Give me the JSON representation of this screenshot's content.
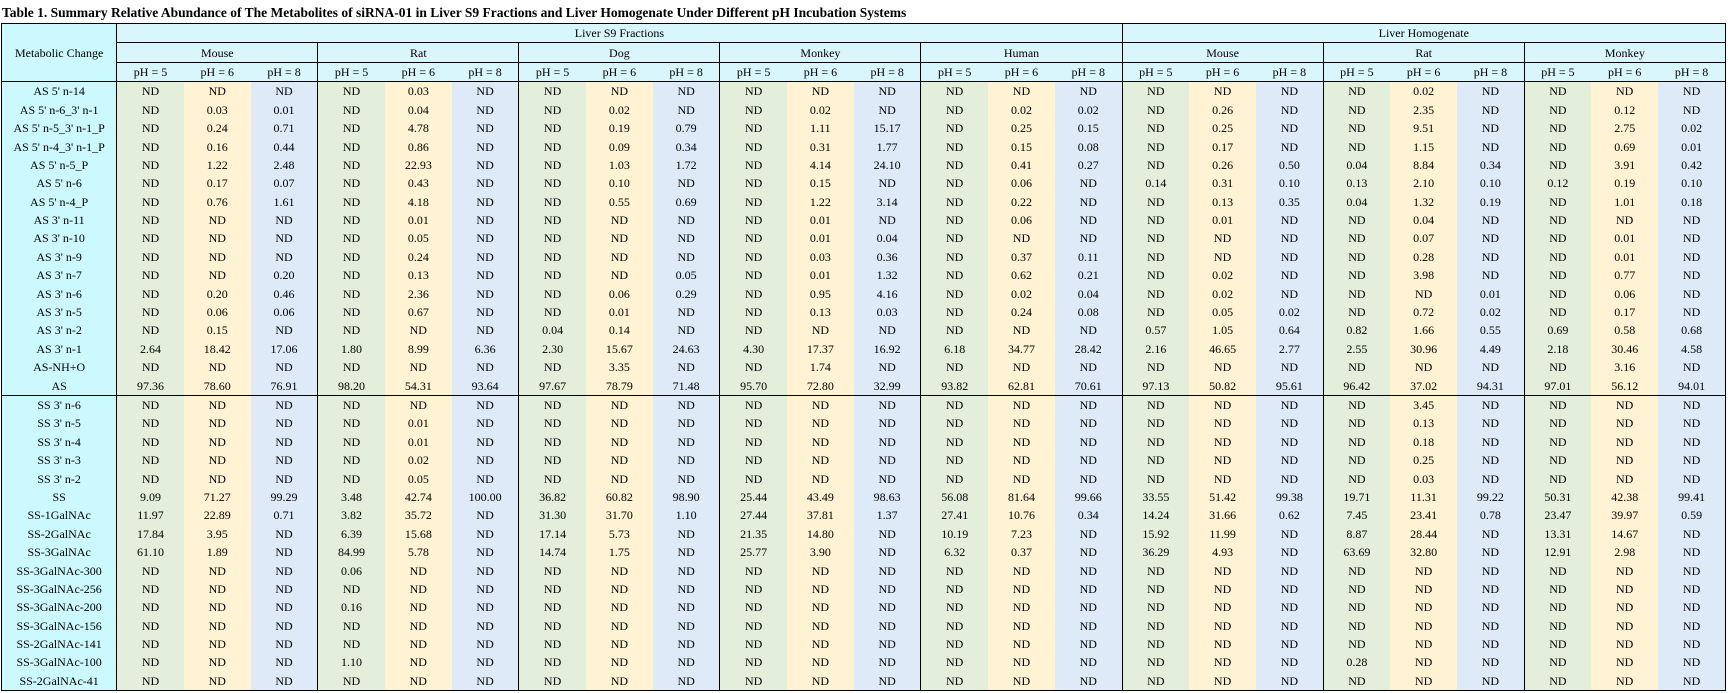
{
  "caption": "Table 1. Summary Relative Abundance of The Metabolites of siRNA-01 in Liver S9 Fractions and Liver Homogenate Under Different pH Incubation Systems",
  "table": {
    "corner": "Metabolic Change",
    "groups": [
      {
        "label": "Liver S9 Fractions",
        "span": 15
      },
      {
        "label": "Liver Homogenate",
        "span": 9
      }
    ],
    "species": [
      "Mouse",
      "Rat",
      "Dog",
      "Monkey",
      "Human",
      "Mouse",
      "Rat",
      "Monkey"
    ],
    "ph": [
      "pH = 5",
      "pH = 6",
      "pH = 8"
    ],
    "colors": {
      "ph5": "#e3efdb",
      "ph6": "#fff3d4",
      "ph8": "#deeaf7",
      "header": "#d8f6fb",
      "label": "#ccf9fd"
    },
    "rows": [
      {
        "label": "AS 5' n-14",
        "v": [
          "ND",
          "ND",
          "ND",
          "ND",
          "0.03",
          "ND",
          "ND",
          "ND",
          "ND",
          "ND",
          "ND",
          "ND",
          "ND",
          "ND",
          "ND",
          "ND",
          "ND",
          "ND",
          "ND",
          "0.02",
          "ND",
          "ND",
          "ND",
          "ND"
        ]
      },
      {
        "label": "AS 5' n-6_3' n-1",
        "v": [
          "ND",
          "0.03",
          "0.01",
          "ND",
          "0.04",
          "ND",
          "ND",
          "0.02",
          "ND",
          "ND",
          "0.02",
          "ND",
          "ND",
          "0.02",
          "0.02",
          "ND",
          "0.26",
          "ND",
          "ND",
          "2.35",
          "ND",
          "ND",
          "0.12",
          "ND"
        ]
      },
      {
        "label": "AS 5' n-5_3' n-1_P",
        "v": [
          "ND",
          "0.24",
          "0.71",
          "ND",
          "4.78",
          "ND",
          "ND",
          "0.19",
          "0.79",
          "ND",
          "1.11",
          "15.17",
          "ND",
          "0.25",
          "0.15",
          "ND",
          "0.25",
          "ND",
          "ND",
          "9.51",
          "ND",
          "ND",
          "2.75",
          "0.02"
        ]
      },
      {
        "label": "AS 5' n-4_3' n-1_P",
        "v": [
          "ND",
          "0.16",
          "0.44",
          "ND",
          "0.86",
          "ND",
          "ND",
          "0.09",
          "0.34",
          "ND",
          "0.31",
          "1.77",
          "ND",
          "0.15",
          "0.08",
          "ND",
          "0.17",
          "ND",
          "ND",
          "1.15",
          "ND",
          "ND",
          "0.69",
          "0.01"
        ]
      },
      {
        "label": "AS 5' n-5_P",
        "v": [
          "ND",
          "1.22",
          "2.48",
          "ND",
          "22.93",
          "ND",
          "ND",
          "1.03",
          "1.72",
          "ND",
          "4.14",
          "24.10",
          "ND",
          "0.41",
          "0.27",
          "ND",
          "0.26",
          "0.50",
          "0.04",
          "8.84",
          "0.34",
          "ND",
          "3.91",
          "0.42"
        ]
      },
      {
        "label": "AS 5' n-6",
        "v": [
          "ND",
          "0.17",
          "0.07",
          "ND",
          "0.43",
          "ND",
          "ND",
          "0.10",
          "ND",
          "ND",
          "0.15",
          "ND",
          "ND",
          "0.06",
          "ND",
          "0.14",
          "0.31",
          "0.10",
          "0.13",
          "2.10",
          "0.10",
          "0.12",
          "0.19",
          "0.10"
        ]
      },
      {
        "label": "AS 5' n-4_P",
        "v": [
          "ND",
          "0.76",
          "1.61",
          "ND",
          "4.18",
          "ND",
          "ND",
          "0.55",
          "0.69",
          "ND",
          "1.22",
          "3.14",
          "ND",
          "0.22",
          "ND",
          "ND",
          "0.13",
          "0.35",
          "0.04",
          "1.32",
          "0.19",
          "ND",
          "1.01",
          "0.18"
        ]
      },
      {
        "label": "AS 3' n-11",
        "v": [
          "ND",
          "ND",
          "ND",
          "ND",
          "0.01",
          "ND",
          "ND",
          "ND",
          "ND",
          "ND",
          "0.01",
          "ND",
          "ND",
          "0.06",
          "ND",
          "ND",
          "0.01",
          "ND",
          "ND",
          "0.04",
          "ND",
          "ND",
          "ND",
          "ND"
        ]
      },
      {
        "label": "AS 3' n-10",
        "v": [
          "ND",
          "ND",
          "ND",
          "ND",
          "0.05",
          "ND",
          "ND",
          "ND",
          "ND",
          "ND",
          "0.01",
          "0.04",
          "ND",
          "ND",
          "ND",
          "ND",
          "ND",
          "ND",
          "ND",
          "0.07",
          "ND",
          "ND",
          "0.01",
          "ND"
        ]
      },
      {
        "label": "AS 3' n-9",
        "v": [
          "ND",
          "ND",
          "ND",
          "ND",
          "0.24",
          "ND",
          "ND",
          "ND",
          "ND",
          "ND",
          "0.03",
          "0.36",
          "ND",
          "0.37",
          "0.11",
          "ND",
          "ND",
          "ND",
          "ND",
          "0.28",
          "ND",
          "ND",
          "0.01",
          "ND"
        ]
      },
      {
        "label": "AS 3' n-7",
        "v": [
          "ND",
          "ND",
          "0.20",
          "ND",
          "0.13",
          "ND",
          "ND",
          "ND",
          "0.05",
          "ND",
          "0.01",
          "1.32",
          "ND",
          "0.62",
          "0.21",
          "ND",
          "0.02",
          "ND",
          "ND",
          "3.98",
          "ND",
          "ND",
          "0.77",
          "ND"
        ]
      },
      {
        "label": "AS 3' n-6",
        "v": [
          "ND",
          "0.20",
          "0.46",
          "ND",
          "2.36",
          "ND",
          "ND",
          "0.06",
          "0.29",
          "ND",
          "0.95",
          "4.16",
          "ND",
          "0.02",
          "0.04",
          "ND",
          "0.02",
          "ND",
          "ND",
          "ND",
          "0.01",
          "ND",
          "0.06",
          "ND"
        ]
      },
      {
        "label": "AS 3' n-5",
        "v": [
          "ND",
          "0.06",
          "0.06",
          "ND",
          "0.67",
          "ND",
          "ND",
          "0.01",
          "ND",
          "ND",
          "0.13",
          "0.03",
          "ND",
          "0.24",
          "0.08",
          "ND",
          "0.05",
          "0.02",
          "ND",
          "0.72",
          "0.02",
          "ND",
          "0.17",
          "ND"
        ]
      },
      {
        "label": "AS 3' n-2",
        "v": [
          "ND",
          "0.15",
          "ND",
          "ND",
          "ND",
          "ND",
          "0.04",
          "0.14",
          "ND",
          "ND",
          "ND",
          "ND",
          "ND",
          "ND",
          "ND",
          "0.57",
          "1.05",
          "0.64",
          "0.82",
          "1.66",
          "0.55",
          "0.69",
          "0.58",
          "0.68"
        ]
      },
      {
        "label": "AS 3' n-1",
        "v": [
          "2.64",
          "18.42",
          "17.06",
          "1.80",
          "8.99",
          "6.36",
          "2.30",
          "15.67",
          "24.63",
          "4.30",
          "17.37",
          "16.92",
          "6.18",
          "34.77",
          "28.42",
          "2.16",
          "46.65",
          "2.77",
          "2.55",
          "30.96",
          "4.49",
          "2.18",
          "30.46",
          "4.58"
        ]
      },
      {
        "label": "AS-NH+O",
        "v": [
          "ND",
          "ND",
          "ND",
          "ND",
          "ND",
          "ND",
          "ND",
          "3.35",
          "ND",
          "ND",
          "1.74",
          "ND",
          "ND",
          "ND",
          "ND",
          "ND",
          "ND",
          "ND",
          "ND",
          "ND",
          "ND",
          "ND",
          "3.16",
          "ND"
        ]
      },
      {
        "label": "AS",
        "v": [
          "97.36",
          "78.60",
          "76.91",
          "98.20",
          "54.31",
          "93.64",
          "97.67",
          "78.79",
          "71.48",
          "95.70",
          "72.80",
          "32.99",
          "93.82",
          "62.81",
          "70.61",
          "97.13",
          "50.82",
          "95.61",
          "96.42",
          "37.02",
          "94.31",
          "97.01",
          "56.12",
          "94.01"
        ]
      },
      {
        "label": "SS 3' n-6",
        "v": [
          "ND",
          "ND",
          "ND",
          "ND",
          "ND",
          "ND",
          "ND",
          "ND",
          "ND",
          "ND",
          "ND",
          "ND",
          "ND",
          "ND",
          "ND",
          "ND",
          "ND",
          "ND",
          "ND",
          "3.45",
          "ND",
          "ND",
          "ND",
          "ND"
        ]
      },
      {
        "label": "SS 3' n-5",
        "v": [
          "ND",
          "ND",
          "ND",
          "ND",
          "0.01",
          "ND",
          "ND",
          "ND",
          "ND",
          "ND",
          "ND",
          "ND",
          "ND",
          "ND",
          "ND",
          "ND",
          "ND",
          "ND",
          "ND",
          "0.13",
          "ND",
          "ND",
          "ND",
          "ND"
        ]
      },
      {
        "label": "SS 3' n-4",
        "v": [
          "ND",
          "ND",
          "ND",
          "ND",
          "0.01",
          "ND",
          "ND",
          "ND",
          "ND",
          "ND",
          "ND",
          "ND",
          "ND",
          "ND",
          "ND",
          "ND",
          "ND",
          "ND",
          "ND",
          "0.18",
          "ND",
          "ND",
          "ND",
          "ND"
        ]
      },
      {
        "label": "SS 3' n-3",
        "v": [
          "ND",
          "ND",
          "ND",
          "ND",
          "0.02",
          "ND",
          "ND",
          "ND",
          "ND",
          "ND",
          "ND",
          "ND",
          "ND",
          "ND",
          "ND",
          "ND",
          "ND",
          "ND",
          "ND",
          "0.25",
          "ND",
          "ND",
          "ND",
          "ND"
        ]
      },
      {
        "label": "SS 3' n-2",
        "v": [
          "ND",
          "ND",
          "ND",
          "ND",
          "0.05",
          "ND",
          "ND",
          "ND",
          "ND",
          "ND",
          "ND",
          "ND",
          "ND",
          "ND",
          "ND",
          "ND",
          "ND",
          "ND",
          "ND",
          "0.03",
          "ND",
          "ND",
          "ND",
          "ND"
        ]
      },
      {
        "label": "SS",
        "v": [
          "9.09",
          "71.27",
          "99.29",
          "3.48",
          "42.74",
          "100.00",
          "36.82",
          "60.82",
          "98.90",
          "25.44",
          "43.49",
          "98.63",
          "56.08",
          "81.64",
          "99.66",
          "33.55",
          "51.42",
          "99.38",
          "19.71",
          "11.31",
          "99.22",
          "50.31",
          "42.38",
          "99.41"
        ]
      },
      {
        "label": "SS-1GalNAc",
        "v": [
          "11.97",
          "22.89",
          "0.71",
          "3.82",
          "35.72",
          "ND",
          "31.30",
          "31.70",
          "1.10",
          "27.44",
          "37.81",
          "1.37",
          "27.41",
          "10.76",
          "0.34",
          "14.24",
          "31.66",
          "0.62",
          "7.45",
          "23.41",
          "0.78",
          "23.47",
          "39.97",
          "0.59"
        ]
      },
      {
        "label": "SS-2GalNAc",
        "v": [
          "17.84",
          "3.95",
          "ND",
          "6.39",
          "15.68",
          "ND",
          "17.14",
          "5.73",
          "ND",
          "21.35",
          "14.80",
          "ND",
          "10.19",
          "7.23",
          "ND",
          "15.92",
          "11.99",
          "ND",
          "8.87",
          "28.44",
          "ND",
          "13.31",
          "14.67",
          "ND"
        ]
      },
      {
        "label": "SS-3GalNAc",
        "v": [
          "61.10",
          "1.89",
          "ND",
          "84.99",
          "5.78",
          "ND",
          "14.74",
          "1.75",
          "ND",
          "25.77",
          "3.90",
          "ND",
          "6.32",
          "0.37",
          "ND",
          "36.29",
          "4.93",
          "ND",
          "63.69",
          "32.80",
          "ND",
          "12.91",
          "2.98",
          "ND"
        ]
      },
      {
        "label": "SS-3GalNAc-300",
        "v": [
          "ND",
          "ND",
          "ND",
          "0.06",
          "ND",
          "ND",
          "ND",
          "ND",
          "ND",
          "ND",
          "ND",
          "ND",
          "ND",
          "ND",
          "ND",
          "ND",
          "ND",
          "ND",
          "ND",
          "ND",
          "ND",
          "ND",
          "ND",
          "ND"
        ]
      },
      {
        "label": "SS-3GalNAc-256",
        "v": [
          "ND",
          "ND",
          "ND",
          "ND",
          "ND",
          "ND",
          "ND",
          "ND",
          "ND",
          "ND",
          "ND",
          "ND",
          "ND",
          "ND",
          "ND",
          "ND",
          "ND",
          "ND",
          "ND",
          "ND",
          "ND",
          "ND",
          "ND",
          "ND"
        ]
      },
      {
        "label": "SS-3GalNAc-200",
        "v": [
          "ND",
          "ND",
          "ND",
          "0.16",
          "ND",
          "ND",
          "ND",
          "ND",
          "ND",
          "ND",
          "ND",
          "ND",
          "ND",
          "ND",
          "ND",
          "ND",
          "ND",
          "ND",
          "ND",
          "ND",
          "ND",
          "ND",
          "ND",
          "ND"
        ]
      },
      {
        "label": "SS-3GalNAc-156",
        "v": [
          "ND",
          "ND",
          "ND",
          "ND",
          "ND",
          "ND",
          "ND",
          "ND",
          "ND",
          "ND",
          "ND",
          "ND",
          "ND",
          "ND",
          "ND",
          "ND",
          "ND",
          "ND",
          "ND",
          "ND",
          "ND",
          "ND",
          "ND",
          "ND"
        ]
      },
      {
        "label": "SS-2GalNAc-141",
        "v": [
          "ND",
          "ND",
          "ND",
          "ND",
          "ND",
          "ND",
          "ND",
          "ND",
          "ND",
          "ND",
          "ND",
          "ND",
          "ND",
          "ND",
          "ND",
          "ND",
          "ND",
          "ND",
          "ND",
          "ND",
          "ND",
          "ND",
          "ND",
          "ND"
        ]
      },
      {
        "label": "SS-3GalNAc-100",
        "v": [
          "ND",
          "ND",
          "ND",
          "1.10",
          "ND",
          "ND",
          "ND",
          "ND",
          "ND",
          "ND",
          "ND",
          "ND",
          "ND",
          "ND",
          "ND",
          "ND",
          "ND",
          "ND",
          "0.28",
          "ND",
          "ND",
          "ND",
          "ND",
          "ND"
        ]
      },
      {
        "label": "SS-2GalNAc-41",
        "v": [
          "ND",
          "ND",
          "ND",
          "ND",
          "ND",
          "ND",
          "ND",
          "ND",
          "ND",
          "ND",
          "ND",
          "ND",
          "ND",
          "ND",
          "ND",
          "ND",
          "ND",
          "ND",
          "ND",
          "ND",
          "ND",
          "ND",
          "ND",
          "ND"
        ]
      }
    ]
  }
}
